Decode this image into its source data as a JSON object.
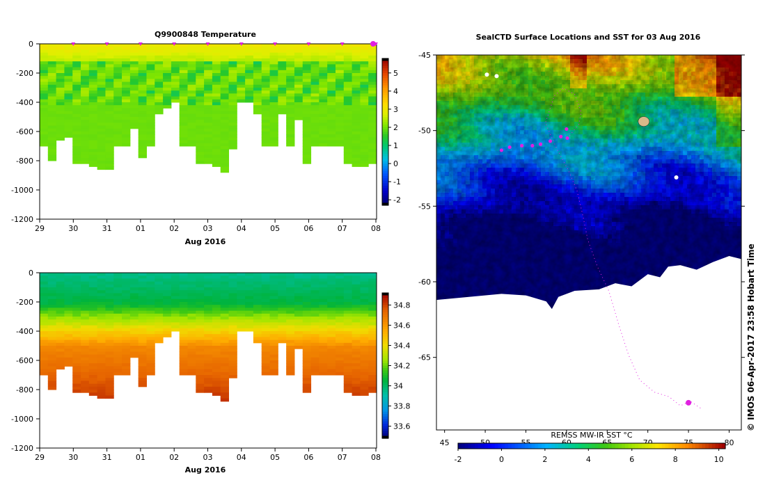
{
  "chart_data": [
    {
      "type": "heatmap",
      "title": "Q9900848  Temperature",
      "xlabel": "Aug 2016",
      "x_tick_labels": [
        "29",
        "30",
        "31",
        "01",
        "02",
        "03",
        "04",
        "05",
        "06",
        "07",
        "08"
      ],
      "y_tick_labels": [
        "0",
        "-200",
        "-400",
        "-600",
        "-800",
        "-1000",
        "-1200"
      ],
      "ylim": [
        -1200,
        0
      ],
      "colorbar": {
        "ticks": [
          "5",
          "4",
          "3",
          "2",
          "1",
          "0",
          "-1",
          "-2"
        ],
        "range": [
          -2.3,
          5.8
        ]
      },
      "profile_max_depths": [
        700,
        790,
        650,
        640,
        820,
        820,
        840,
        860,
        860,
        700,
        700,
        580,
        780,
        700,
        470,
        440,
        400,
        700,
        700,
        820,
        810,
        840,
        880,
        720,
        400,
        400,
        480,
        700,
        700,
        480,
        700,
        520,
        820,
        700,
        700,
        700,
        700,
        810,
        840,
        840,
        820
      ],
      "surface_value": 3.0,
      "deep_value": 1.6,
      "mid_layer_value": 1.3
    },
    {
      "type": "heatmap",
      "title": "",
      "xlabel": "Aug 2016",
      "x_tick_labels": [
        "29",
        "30",
        "31",
        "01",
        "02",
        "03",
        "04",
        "05",
        "06",
        "07",
        "08"
      ],
      "y_tick_labels": [
        "0",
        "-200",
        "-400",
        "-600",
        "-800",
        "-1000",
        "-1200"
      ],
      "ylim": [
        -1200,
        0
      ],
      "colorbar": {
        "ticks": [
          "34.8",
          "34.6",
          "34.4",
          "34.2",
          "34",
          "33.8",
          "33.6"
        ],
        "range": [
          33.48,
          34.92
        ]
      },
      "surface_value": 33.95,
      "deep_value": 34.82
    },
    {
      "type": "heatmap",
      "title": "SealCTD Surface Locations and SST for 03 Aug 2016",
      "x_tick_labels": [
        "45",
        "50",
        "55",
        "60",
        "65",
        "70",
        "75",
        "80"
      ],
      "y_tick_labels": [
        "-45",
        "-50",
        "-55",
        "-60",
        "-65"
      ],
      "xlim": [
        44,
        81.5
      ],
      "ylim": [
        -69.8,
        -45
      ],
      "colorbar": {
        "label": "REMSS MW-IR SST °C",
        "ticks": [
          "-2",
          "0",
          "2",
          "4",
          "6",
          "8",
          "10"
        ],
        "range": [
          -2,
          10.3
        ]
      },
      "seal_positions": [
        [
          52.0,
          -51.3
        ],
        [
          53.0,
          -51.1
        ],
        [
          54.5,
          -51.0
        ],
        [
          55.8,
          -51.0
        ],
        [
          56.8,
          -50.9
        ],
        [
          58.0,
          -50.7
        ],
        [
          59.3,
          -50.4
        ],
        [
          60.1,
          -50.5
        ],
        [
          60.0,
          -49.9
        ]
      ],
      "side_text": "© IMOS 06-Apr-2017 23:58 Hobart Time"
    }
  ]
}
